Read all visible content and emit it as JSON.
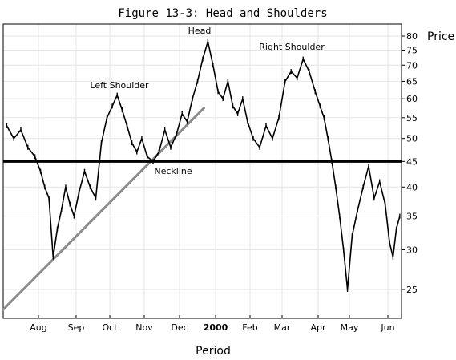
{
  "chart_data": {
    "type": "line",
    "title": "Figure 13-3: Head and Shoulders",
    "xlabel": "Period",
    "ylabel": "Price",
    "y_scale": "log",
    "ylim": [
      22,
      85
    ],
    "grid": true,
    "x_ticks": [
      "Aug",
      "Sep",
      "Oct",
      "Nov",
      "Dec",
      "2000",
      "Feb",
      "Mar",
      "Apr",
      "May",
      "Jun"
    ],
    "y_ticks": [
      25,
      30,
      35,
      40,
      45,
      50,
      55,
      60,
      65,
      70,
      75,
      80
    ],
    "annotations": [
      "Head",
      "Left Shoulder",
      "Right Shoulder",
      "Neckline"
    ],
    "neckline_level": 45,
    "trendline": {
      "start": {
        "x": "Jul",
        "y": 22.8
      },
      "end": {
        "x": "Dec",
        "y": 57.5
      }
    },
    "series": [
      {
        "x": [
          "Jul",
          "Jul",
          "Jul",
          "Jul",
          "Jul",
          "Aug",
          "Aug",
          "Aug",
          "Aug",
          "Aug",
          "Aug",
          "Aug",
          "Aug",
          "Aug",
          "Sep",
          "Sep",
          "Sep",
          "Sep",
          "Sep",
          "Sep",
          "Oct",
          "Oct",
          "Oct",
          "Oct",
          "Oct",
          "Oct",
          "Oct",
          "Nov",
          "Nov",
          "Nov",
          "Nov",
          "Nov",
          "Nov",
          "Dec",
          "Dec",
          "Dec",
          "Dec",
          "Dec",
          "Dec",
          "Dec",
          "2000",
          "2000",
          "2000",
          "2000",
          "2000",
          "2000",
          "2000",
          "Feb",
          "Feb",
          "Feb",
          "Feb",
          "Feb",
          "Mar",
          "Mar",
          "Mar",
          "Mar",
          "Mar",
          "Mar",
          "Apr",
          "Apr",
          "Apr",
          "Apr",
          "Apr",
          "Apr",
          "Apr",
          "Apr",
          "May",
          "May",
          "May",
          "May",
          "May",
          "May",
          "May",
          "Jun",
          "Jun",
          "Jun",
          "Jun"
        ],
        "values": [
          53,
          50,
          52,
          48,
          46,
          43,
          40,
          38,
          29,
          33,
          36,
          40,
          37,
          35,
          39,
          43,
          40,
          38,
          49,
          55,
          58,
          61,
          57,
          53,
          49,
          47,
          50,
          46,
          45,
          47,
          52,
          48,
          51,
          56,
          54,
          60,
          65,
          72,
          78,
          70,
          62,
          60,
          65,
          58,
          56,
          60,
          54,
          50,
          48,
          53,
          50,
          55,
          65,
          68,
          66,
          72,
          68,
          62,
          58,
          55,
          50,
          45,
          40,
          35,
          30,
          25,
          32,
          36,
          40,
          44,
          38,
          41,
          37,
          31,
          29,
          33,
          35
        ]
      }
    ]
  }
}
